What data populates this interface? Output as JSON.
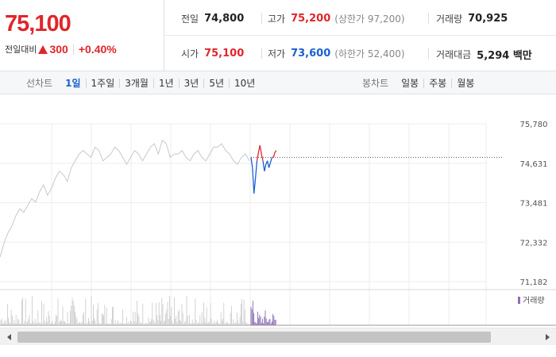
{
  "quote": {
    "current_price": "75,100",
    "change_label": "전일대비",
    "change_icon": "up-triangle-icon",
    "change_value": "300",
    "change_percent": "+0.40%",
    "colors": {
      "up": "#e0262c",
      "down": "#1a60d0"
    }
  },
  "stats": {
    "prev_close": {
      "label": "전일",
      "value": "74,800"
    },
    "high": {
      "label": "고가",
      "value": "75,200",
      "sub": "(상한가 97,200)"
    },
    "volume": {
      "label": "거래량",
      "value": "70,925"
    },
    "open": {
      "label": "시가",
      "value": "75,100"
    },
    "low": {
      "label": "저가",
      "value": "73,600",
      "sub": "(하한가 52,400)"
    },
    "trade_amount": {
      "label": "거래대금",
      "value": "5,294 백만"
    }
  },
  "toolbar": {
    "line_chart": {
      "title": "선차트",
      "items": [
        "1일",
        "1주일",
        "3개월",
        "1년",
        "3년",
        "5년",
        "10년"
      ],
      "active": "1일"
    },
    "candle_chart": {
      "title": "봉차트",
      "items": [
        "일봉",
        "주봉",
        "월봉"
      ]
    }
  },
  "chart_data": {
    "type": "line",
    "y_ticks": [
      "75,780",
      "74,631",
      "73,481",
      "72,332",
      "71,182"
    ],
    "ylim": [
      71182,
      75780
    ],
    "reference_line": 74800,
    "volume_legend": "거래량",
    "grid": true,
    "colors": {
      "history": "#c8c8c8",
      "up": "#e0262c",
      "down": "#1a60d0",
      "volume_today": "#8a6fb5",
      "volume_history": "#c8c8c8"
    },
    "history_series": {
      "name": "history",
      "values": [
        71900,
        72300,
        72600,
        72800,
        73100,
        73300,
        73200,
        73400,
        73600,
        73500,
        73800,
        74000,
        73700,
        73900,
        74200,
        74400,
        74300,
        74100,
        74500,
        74700,
        74900,
        75000,
        74900,
        74800,
        75100,
        75000,
        74700,
        74800,
        74900,
        75100,
        75000,
        74800,
        74600,
        74800,
        75000,
        74900,
        74700,
        74900,
        75100,
        75200,
        74900,
        75300,
        75200,
        74800,
        74900,
        74900,
        75000,
        74800,
        74700,
        74900,
        75000,
        74800,
        74700,
        74900,
        75100,
        75100,
        75200,
        75000,
        74900,
        74700,
        74600,
        74800,
        74900,
        74700
      ]
    },
    "today_series": {
      "name": "today",
      "values": [
        74800,
        74500,
        73750,
        74200,
        74700,
        74950,
        75150,
        74900,
        74700,
        74400,
        74600,
        74700,
        74500,
        74650,
        74800,
        74800,
        74950,
        75000
      ]
    }
  },
  "scrollbar": {
    "left_icon": "scroll-left-arrow-icon",
    "right_icon": "scroll-right-arrow-icon"
  }
}
